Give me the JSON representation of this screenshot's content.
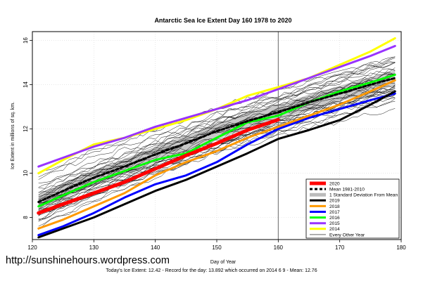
{
  "source_url": "http://sunshinehours.wordpress.com",
  "footer_note": "Today's Ice Extent: 12.42  - Record for the day: 13.892 which occurred on 2014 6 9  - Mean: 12.76",
  "chart_data": {
    "type": "line",
    "title": "Antarctic Sea Ice Extent Day 160 1978 to 2020",
    "xlabel": "Day of Year",
    "ylabel": "Ice Extent in millions of sq. km.",
    "xlim": [
      120,
      180
    ],
    "ylim": [
      7,
      16.4
    ],
    "x_ticks": [
      120,
      130,
      140,
      150,
      160,
      170,
      180
    ],
    "y_ticks": [
      8,
      10,
      12,
      14,
      16
    ],
    "grid": true,
    "legend_position": "bottom-right",
    "reference_line_x": 160,
    "days": [
      121,
      125,
      130,
      135,
      140,
      145,
      150,
      155,
      160,
      165,
      170,
      175,
      179
    ],
    "series": [
      {
        "name": "2020",
        "color": "#ff0000",
        "style": "solid",
        "width": 5,
        "values": [
          8.2,
          8.6,
          9.1,
          9.6,
          10.2,
          10.8,
          11.35,
          11.95,
          12.42,
          null,
          null,
          null,
          null
        ]
      },
      {
        "name": "Mean 1981-2010",
        "color": "#000000",
        "style": "dashed",
        "width": 3,
        "values": [
          8.7,
          9.2,
          9.8,
          10.3,
          10.85,
          11.35,
          11.9,
          12.35,
          12.76,
          13.2,
          13.6,
          14.0,
          14.3
        ]
      },
      {
        "name": "2019",
        "color": "#000000",
        "style": "solid",
        "width": 3,
        "values": [
          7.1,
          7.5,
          8.0,
          8.6,
          9.2,
          9.7,
          10.3,
          10.9,
          11.55,
          11.95,
          12.4,
          13.1,
          13.7
        ]
      },
      {
        "name": "2018",
        "color": "#ff9900",
        "style": "solid",
        "width": 3,
        "values": [
          7.5,
          7.9,
          8.5,
          9.1,
          9.9,
          10.5,
          11.0,
          11.6,
          12.1,
          12.6,
          13.1,
          13.7,
          14.2
        ]
      },
      {
        "name": "2017",
        "color": "#0000ff",
        "style": "solid",
        "width": 3,
        "values": [
          7.2,
          7.6,
          8.2,
          8.9,
          9.5,
          9.9,
          10.5,
          11.3,
          12.0,
          12.5,
          12.9,
          13.3,
          13.6
        ]
      },
      {
        "name": "2016",
        "color": "#00ff00",
        "style": "solid",
        "width": 3,
        "values": [
          8.5,
          9.0,
          9.6,
          10.1,
          10.6,
          10.9,
          11.6,
          12.3,
          12.6,
          13.2,
          13.7,
          14.1,
          14.45
        ]
      },
      {
        "name": "2015",
        "color": "#9933ff",
        "style": "solid",
        "width": 3,
        "values": [
          10.3,
          10.7,
          11.2,
          11.6,
          12.1,
          12.5,
          12.9,
          13.3,
          13.8,
          14.3,
          14.8,
          15.3,
          15.75
        ]
      },
      {
        "name": "2014",
        "color": "#ffff00",
        "style": "solid",
        "width": 3,
        "values": [
          10.0,
          10.6,
          11.3,
          11.6,
          12.0,
          12.4,
          12.9,
          13.5,
          13.89,
          14.3,
          14.9,
          15.5,
          16.1
        ]
      }
    ],
    "other_years": {
      "name": "Every Other Year",
      "color": "#000000",
      "count": 36
    },
    "std_band": {
      "name": "1 Standard Deviation From Mean",
      "color": "#bbbbbb",
      "lower": [
        8.35,
        8.85,
        9.45,
        9.95,
        10.5,
        11.0,
        11.55,
        12.0,
        12.4,
        12.85,
        13.25,
        13.65,
        13.95
      ],
      "upper": [
        9.05,
        9.55,
        10.15,
        10.65,
        11.2,
        11.7,
        12.25,
        12.7,
        13.1,
        13.55,
        13.95,
        14.35,
        14.65
      ]
    },
    "legend": [
      "2020",
      "Mean 1981-2010",
      "1 Standard Deviation From Mean",
      "2019",
      "2018",
      "2017",
      "2016",
      "2015",
      "2014",
      "Every Other Year"
    ]
  }
}
